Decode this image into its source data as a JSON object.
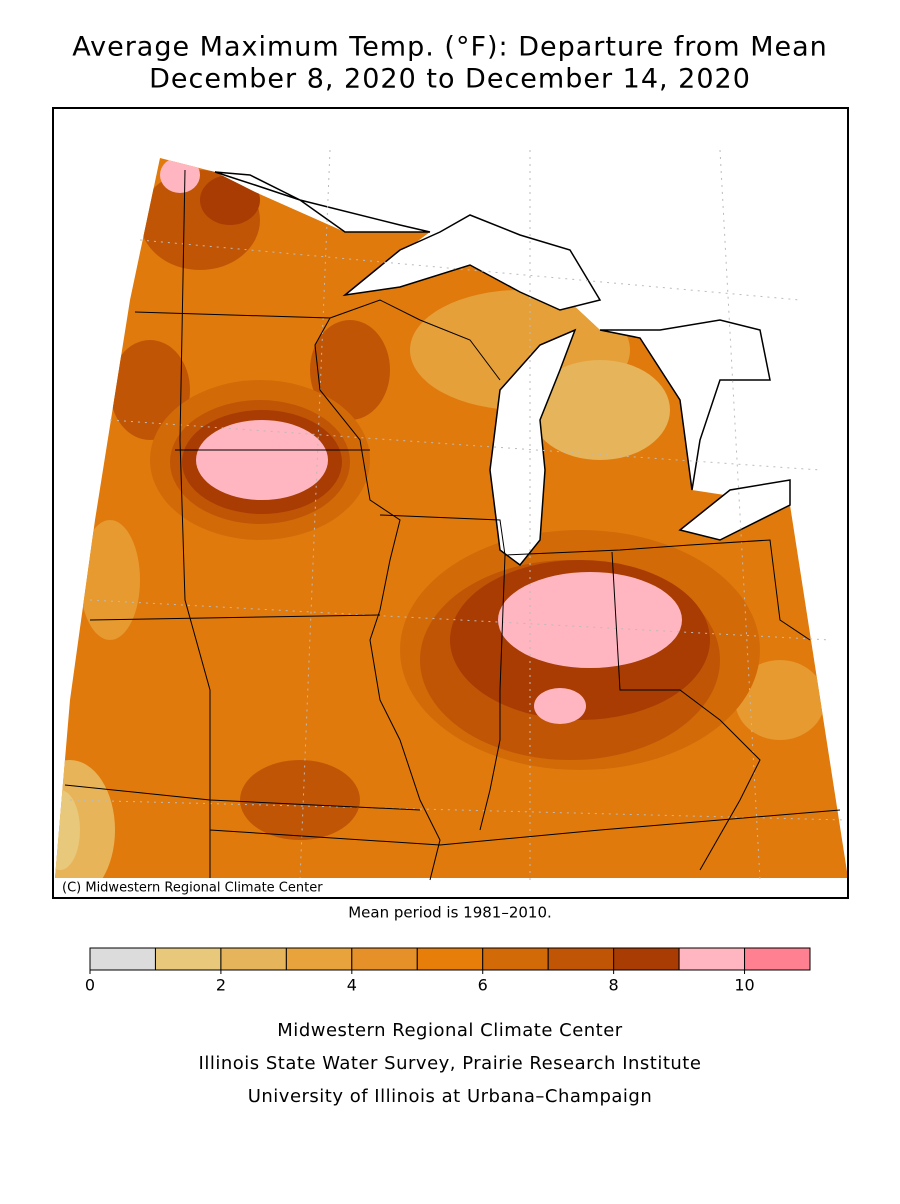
{
  "title": "Average Maximum Temp. (°F): Departure from Mean",
  "subtitle": "December 8, 2020 to December 14, 2020",
  "credit": "(C) Midwestern Regional Climate Center",
  "mean_period": "Mean period is 1981–2010.",
  "legend": {
    "bins": [
      0,
      1,
      2,
      3,
      4,
      5,
      6,
      7,
      8,
      9,
      10,
      11
    ],
    "colors": [
      "#dcdcdc",
      "#e8c87a",
      "#e6b45a",
      "#e8a33c",
      "#e6902a",
      "#e87e0a",
      "#d26a08",
      "#c05506",
      "#a83c02",
      "#ffb6c1",
      "#ff8090"
    ],
    "ticks": [
      0,
      2,
      4,
      6,
      8,
      10
    ]
  },
  "footer": [
    "Midwestern Regional Climate Center",
    "Illinois State Water Survey, Prairie Research Institute",
    "University of Illinois at Urbana–Champaign"
  ]
}
